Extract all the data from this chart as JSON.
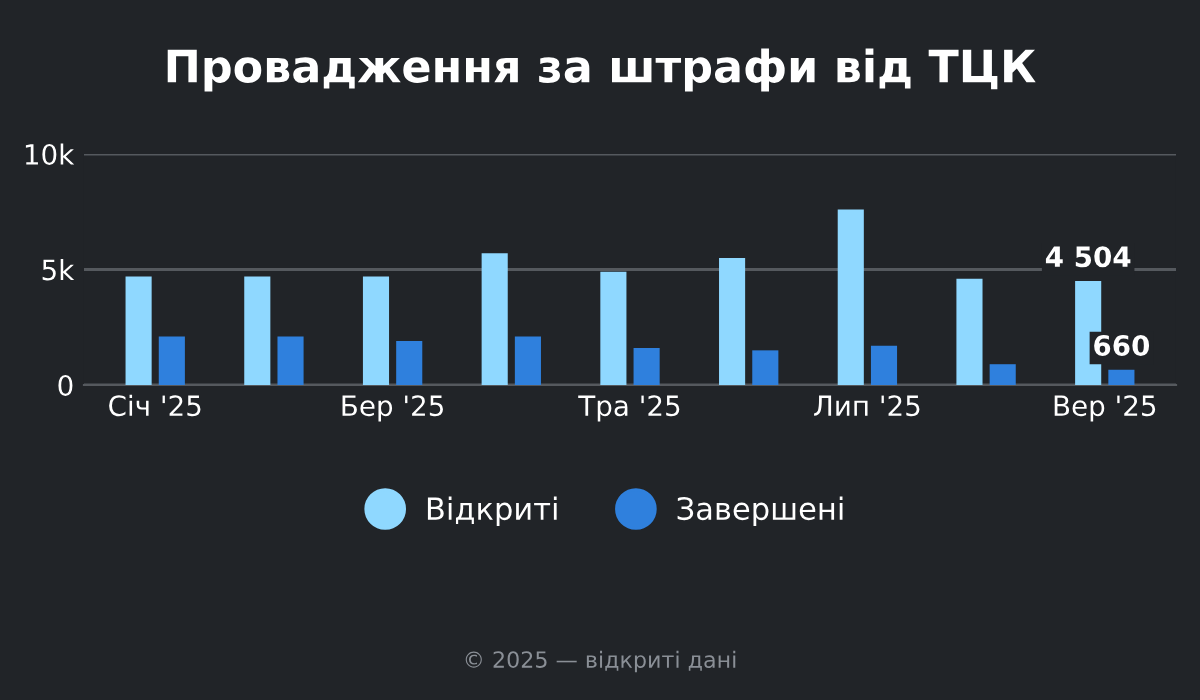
{
  "chart_data": {
    "type": "bar",
    "title": "Провадження за штрафи від ТЦК",
    "categories": [
      "Січ '25",
      null,
      "Бер '25",
      null,
      "Тра '25",
      null,
      "Лип '25",
      null,
      "Вер '25"
    ],
    "series": [
      {
        "name": "Відкриті",
        "color": "#8fd8ff",
        "values": [
          4700,
          4700,
          4700,
          5700,
          4900,
          5500,
          7600,
          4600,
          4504
        ],
        "value_labels": [
          null,
          null,
          null,
          null,
          null,
          null,
          null,
          null,
          "4 504"
        ]
      },
      {
        "name": "Завершені",
        "color": "#2f80dd",
        "values": [
          2100,
          2100,
          1900,
          2100,
          1600,
          1500,
          1700,
          900,
          660
        ],
        "value_labels": [
          null,
          null,
          null,
          null,
          null,
          null,
          null,
          null,
          "660"
        ]
      }
    ],
    "ylim": [
      0,
      10000
    ],
    "yticks": [
      0,
      {
        "value": 5000,
        "label": "5k"
      },
      {
        "value": 10000,
        "label": "10k"
      }
    ],
    "grid": "y",
    "legend": "bottom",
    "annotations": [
      "© 2025 — відкриті дані"
    ]
  }
}
